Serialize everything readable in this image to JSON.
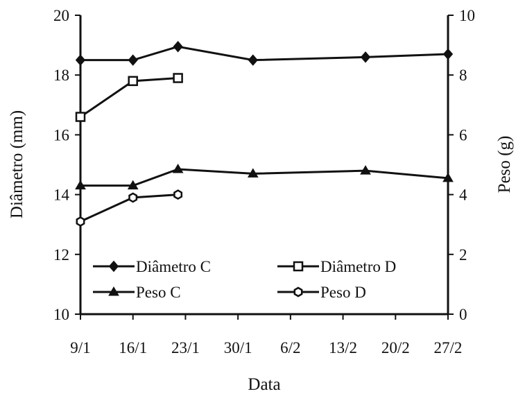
{
  "chart_data": {
    "type": "line",
    "xlabel": "Data",
    "ylabel_left": "Diâmetro (mm)",
    "ylabel_right": "Peso (g)",
    "x_ticks": [
      "9/1",
      "16/1",
      "23/1",
      "30/1",
      "6/2",
      "13/2",
      "20/2",
      "27/2"
    ],
    "x_tick_days": [
      9,
      16,
      23,
      30,
      37,
      44,
      51,
      58
    ],
    "xlim_days": [
      9,
      58
    ],
    "ylim_left": [
      10,
      20
    ],
    "y_ticks_left": [
      "10",
      "12",
      "14",
      "16",
      "18",
      "20"
    ],
    "ylim_right": [
      0,
      10
    ],
    "y_ticks_right": [
      "0",
      "2",
      "4",
      "6",
      "8",
      "10"
    ],
    "grid": false,
    "legend_position": "lower-center",
    "series": [
      {
        "name": "Diâmetro C",
        "axis": "left",
        "marker": "diamond",
        "color": "#111111",
        "x_days": [
          9,
          16,
          22,
          32,
          47,
          62
        ],
        "values": [
          18.5,
          18.5,
          18.95,
          18.5,
          18.6,
          18.7
        ]
      },
      {
        "name": "Diâmetro D",
        "axis": "left",
        "marker": "open-square",
        "color": "#111111",
        "x_days": [
          9,
          16,
          22
        ],
        "values": [
          16.6,
          17.8,
          17.9
        ]
      },
      {
        "name": "Peso C",
        "axis": "right",
        "marker": "triangle",
        "color": "#111111",
        "x_days": [
          9,
          16,
          22,
          32,
          47,
          62
        ],
        "values": [
          4.3,
          4.3,
          4.85,
          4.7,
          4.8,
          4.55
        ]
      },
      {
        "name": "Peso D",
        "axis": "right",
        "marker": "open-hexagon",
        "color": "#111111",
        "x_days": [
          9,
          16,
          22
        ],
        "values": [
          3.1,
          3.9,
          4.0
        ]
      }
    ]
  }
}
